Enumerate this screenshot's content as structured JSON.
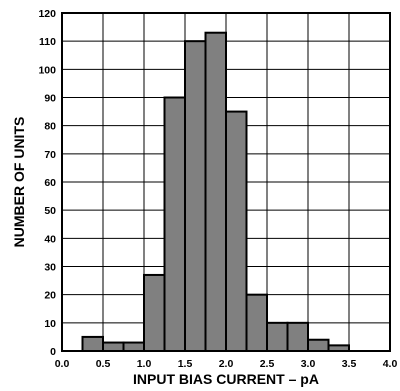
{
  "chart_data": {
    "type": "bar",
    "title": "",
    "xlabel": "INPUT BIAS CURRENT – pA",
    "ylabel": "NUMBER OF UNITS",
    "xlim": [
      0.0,
      4.0
    ],
    "ylim": [
      0,
      120
    ],
    "bin_width": 0.25,
    "bins": [
      {
        "start": 0.25,
        "end": 0.5,
        "value": 5
      },
      {
        "start": 0.5,
        "end": 0.75,
        "value": 3
      },
      {
        "start": 0.75,
        "end": 1.0,
        "value": 3
      },
      {
        "start": 1.0,
        "end": 1.25,
        "value": 27
      },
      {
        "start": 1.25,
        "end": 1.5,
        "value": 90
      },
      {
        "start": 1.5,
        "end": 1.75,
        "value": 110
      },
      {
        "start": 1.75,
        "end": 2.0,
        "value": 113
      },
      {
        "start": 2.0,
        "end": 2.25,
        "value": 85
      },
      {
        "start": 2.25,
        "end": 2.5,
        "value": 20
      },
      {
        "start": 2.5,
        "end": 2.75,
        "value": 10
      },
      {
        "start": 2.75,
        "end": 3.0,
        "value": 10
      },
      {
        "start": 3.0,
        "end": 3.25,
        "value": 4
      },
      {
        "start": 3.25,
        "end": 3.5,
        "value": 2
      }
    ],
    "x_ticks": [
      "0.0",
      "0.5",
      "1.0",
      "1.5",
      "2.0",
      "2.5",
      "3.0",
      "3.5",
      "4.0"
    ],
    "y_ticks": [
      "0",
      "10",
      "20",
      "30",
      "40",
      "50",
      "60",
      "70",
      "80",
      "90",
      "100",
      "110",
      "120"
    ],
    "grid": true,
    "colors": {
      "bar_fill": "#808080",
      "bar_stroke": "#000000",
      "grid": "#000000",
      "background": "#ffffff"
    }
  }
}
